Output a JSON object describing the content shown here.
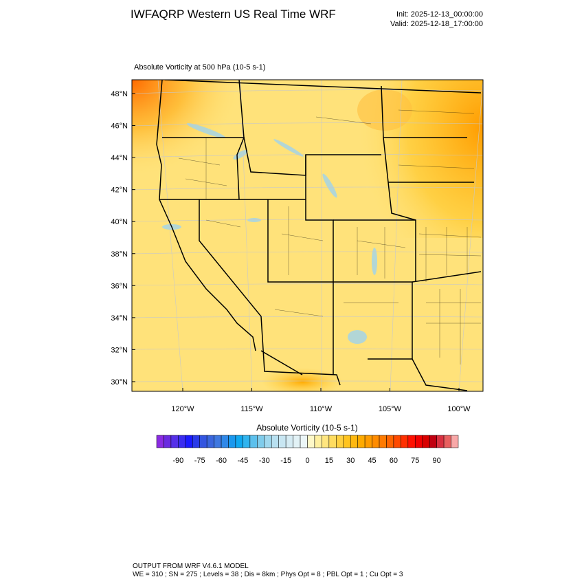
{
  "header": {
    "title": "IWFAQRP Western US Real Time WRF",
    "init": "Init: 2025-12-13_00:00:00",
    "valid": "Valid: 2025-12-18_17:00:00"
  },
  "map": {
    "subtitle": "Absolute Vorticity at 500 hPa   (10-5 s-1)",
    "lat_labels": [
      "48°N",
      "46°N",
      "44°N",
      "42°N",
      "40°N",
      "38°N",
      "36°N",
      "34°N",
      "32°N",
      "30°N"
    ],
    "lon_labels": [
      "120°W",
      "115°W",
      "110°W",
      "105°W",
      "100°W"
    ]
  },
  "colorbar": {
    "title": "Absolute Vorticity  (10-5 s-1)",
    "labels": [
      "-90",
      "-75",
      "-60",
      "-45",
      "-30",
      "-15",
      "0",
      "15",
      "30",
      "45",
      "60",
      "75",
      "90"
    ],
    "colors": [
      "#8a2be2",
      "#6a2ae0",
      "#5530e8",
      "#3a2cf0",
      "#1a1aff",
      "#2a3ae8",
      "#3355e0",
      "#3a66dd",
      "#3f78e0",
      "#2f88e8",
      "#1a98ee",
      "#10a8f0",
      "#30b4ee",
      "#5cc0ec",
      "#80cceb",
      "#a0d8ee",
      "#b8e0f0",
      "#c8e6f2",
      "#d6ecf4",
      "#e2f2f6",
      "#ecf6f8",
      "#fff8c8",
      "#fff0a0",
      "#ffe680",
      "#ffdc60",
      "#ffd040",
      "#ffc420",
      "#ffb810",
      "#ffaa00",
      "#ff9c00",
      "#ff8c00",
      "#ff7a00",
      "#ff6400",
      "#ff4a00",
      "#ff3000",
      "#ff1000",
      "#f00000",
      "#d80000",
      "#c00010",
      "#d83040",
      "#e86060",
      "#f8a8a8"
    ]
  },
  "footer": {
    "line1": "OUTPUT FROM WRF V4.6.1 MODEL",
    "line2": "WE = 310 ; SN = 275 ; Levels = 38 ; Dis = 8km ; Phys Opt = 8 ; PBL Opt = 1 ; Cu Opt = 3"
  }
}
